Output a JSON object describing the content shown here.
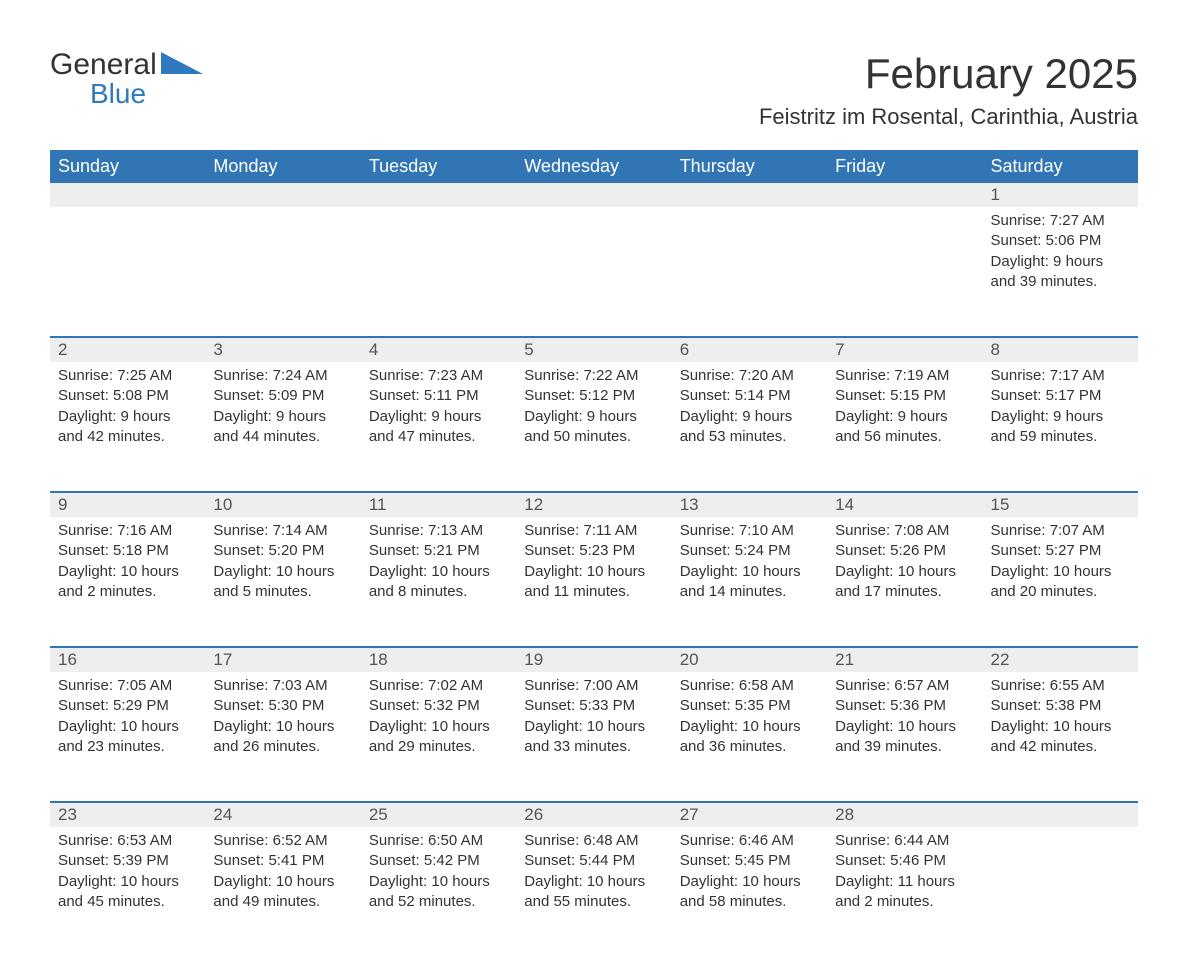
{
  "brand": {
    "name": "General",
    "sub": "Blue",
    "logo_color": "#2f7abf",
    "text_color": "#333333"
  },
  "title": "February 2025",
  "location": "Feistritz im Rosental, Carinthia, Austria",
  "colors": {
    "header_bg": "#3175b5",
    "header_text": "#ffffff",
    "daybar_bg": "#eeeeee",
    "rule": "#3175b5",
    "body_text": "#333333",
    "background": "#ffffff"
  },
  "typography": {
    "title_fontsize": 42,
    "location_fontsize": 22,
    "weekday_fontsize": 18,
    "body_fontsize": 15,
    "daynum_fontsize": 17
  },
  "weekdays": [
    "Sunday",
    "Monday",
    "Tuesday",
    "Wednesday",
    "Thursday",
    "Friday",
    "Saturday"
  ],
  "weeks": [
    [
      null,
      null,
      null,
      null,
      null,
      null,
      {
        "n": "1",
        "sunrise": "Sunrise: 7:27 AM",
        "sunset": "Sunset: 5:06 PM",
        "daylight": "Daylight: 9 hours and 39 minutes."
      }
    ],
    [
      {
        "n": "2",
        "sunrise": "Sunrise: 7:25 AM",
        "sunset": "Sunset: 5:08 PM",
        "daylight": "Daylight: 9 hours and 42 minutes."
      },
      {
        "n": "3",
        "sunrise": "Sunrise: 7:24 AM",
        "sunset": "Sunset: 5:09 PM",
        "daylight": "Daylight: 9 hours and 44 minutes."
      },
      {
        "n": "4",
        "sunrise": "Sunrise: 7:23 AM",
        "sunset": "Sunset: 5:11 PM",
        "daylight": "Daylight: 9 hours and 47 minutes."
      },
      {
        "n": "5",
        "sunrise": "Sunrise: 7:22 AM",
        "sunset": "Sunset: 5:12 PM",
        "daylight": "Daylight: 9 hours and 50 minutes."
      },
      {
        "n": "6",
        "sunrise": "Sunrise: 7:20 AM",
        "sunset": "Sunset: 5:14 PM",
        "daylight": "Daylight: 9 hours and 53 minutes."
      },
      {
        "n": "7",
        "sunrise": "Sunrise: 7:19 AM",
        "sunset": "Sunset: 5:15 PM",
        "daylight": "Daylight: 9 hours and 56 minutes."
      },
      {
        "n": "8",
        "sunrise": "Sunrise: 7:17 AM",
        "sunset": "Sunset: 5:17 PM",
        "daylight": "Daylight: 9 hours and 59 minutes."
      }
    ],
    [
      {
        "n": "9",
        "sunrise": "Sunrise: 7:16 AM",
        "sunset": "Sunset: 5:18 PM",
        "daylight": "Daylight: 10 hours and 2 minutes."
      },
      {
        "n": "10",
        "sunrise": "Sunrise: 7:14 AM",
        "sunset": "Sunset: 5:20 PM",
        "daylight": "Daylight: 10 hours and 5 minutes."
      },
      {
        "n": "11",
        "sunrise": "Sunrise: 7:13 AM",
        "sunset": "Sunset: 5:21 PM",
        "daylight": "Daylight: 10 hours and 8 minutes."
      },
      {
        "n": "12",
        "sunrise": "Sunrise: 7:11 AM",
        "sunset": "Sunset: 5:23 PM",
        "daylight": "Daylight: 10 hours and 11 minutes."
      },
      {
        "n": "13",
        "sunrise": "Sunrise: 7:10 AM",
        "sunset": "Sunset: 5:24 PM",
        "daylight": "Daylight: 10 hours and 14 minutes."
      },
      {
        "n": "14",
        "sunrise": "Sunrise: 7:08 AM",
        "sunset": "Sunset: 5:26 PM",
        "daylight": "Daylight: 10 hours and 17 minutes."
      },
      {
        "n": "15",
        "sunrise": "Sunrise: 7:07 AM",
        "sunset": "Sunset: 5:27 PM",
        "daylight": "Daylight: 10 hours and 20 minutes."
      }
    ],
    [
      {
        "n": "16",
        "sunrise": "Sunrise: 7:05 AM",
        "sunset": "Sunset: 5:29 PM",
        "daylight": "Daylight: 10 hours and 23 minutes."
      },
      {
        "n": "17",
        "sunrise": "Sunrise: 7:03 AM",
        "sunset": "Sunset: 5:30 PM",
        "daylight": "Daylight: 10 hours and 26 minutes."
      },
      {
        "n": "18",
        "sunrise": "Sunrise: 7:02 AM",
        "sunset": "Sunset: 5:32 PM",
        "daylight": "Daylight: 10 hours and 29 minutes."
      },
      {
        "n": "19",
        "sunrise": "Sunrise: 7:00 AM",
        "sunset": "Sunset: 5:33 PM",
        "daylight": "Daylight: 10 hours and 33 minutes."
      },
      {
        "n": "20",
        "sunrise": "Sunrise: 6:58 AM",
        "sunset": "Sunset: 5:35 PM",
        "daylight": "Daylight: 10 hours and 36 minutes."
      },
      {
        "n": "21",
        "sunrise": "Sunrise: 6:57 AM",
        "sunset": "Sunset: 5:36 PM",
        "daylight": "Daylight: 10 hours and 39 minutes."
      },
      {
        "n": "22",
        "sunrise": "Sunrise: 6:55 AM",
        "sunset": "Sunset: 5:38 PM",
        "daylight": "Daylight: 10 hours and 42 minutes."
      }
    ],
    [
      {
        "n": "23",
        "sunrise": "Sunrise: 6:53 AM",
        "sunset": "Sunset: 5:39 PM",
        "daylight": "Daylight: 10 hours and 45 minutes."
      },
      {
        "n": "24",
        "sunrise": "Sunrise: 6:52 AM",
        "sunset": "Sunset: 5:41 PM",
        "daylight": "Daylight: 10 hours and 49 minutes."
      },
      {
        "n": "25",
        "sunrise": "Sunrise: 6:50 AM",
        "sunset": "Sunset: 5:42 PM",
        "daylight": "Daylight: 10 hours and 52 minutes."
      },
      {
        "n": "26",
        "sunrise": "Sunrise: 6:48 AM",
        "sunset": "Sunset: 5:44 PM",
        "daylight": "Daylight: 10 hours and 55 minutes."
      },
      {
        "n": "27",
        "sunrise": "Sunrise: 6:46 AM",
        "sunset": "Sunset: 5:45 PM",
        "daylight": "Daylight: 10 hours and 58 minutes."
      },
      {
        "n": "28",
        "sunrise": "Sunrise: 6:44 AM",
        "sunset": "Sunset: 5:46 PM",
        "daylight": "Daylight: 11 hours and 2 minutes."
      },
      null
    ]
  ]
}
